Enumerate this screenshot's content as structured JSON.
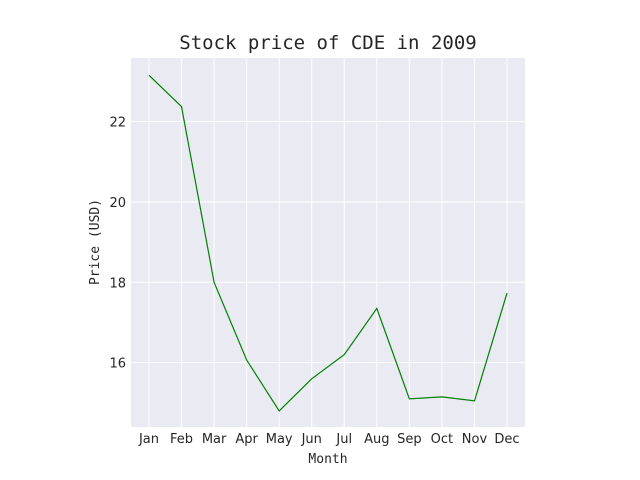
{
  "chart_data": {
    "type": "line",
    "title": "Stock price of CDE in 2009",
    "xlabel": "Month",
    "ylabel": "Price (USD)",
    "categories": [
      "Jan",
      "Feb",
      "Mar",
      "Apr",
      "May",
      "Jun",
      "Jul",
      "Aug",
      "Sep",
      "Oct",
      "Nov",
      "Dec"
    ],
    "values": [
      23.15,
      22.37,
      18.0,
      16.07,
      14.8,
      15.6,
      16.2,
      17.35,
      15.1,
      15.15,
      15.05,
      17.73
    ],
    "yticks": [
      16,
      18,
      20,
      22
    ],
    "ylim": [
      14.4,
      23.58
    ],
    "grid": true,
    "colors": {
      "line": "#008000",
      "plot_background": "#eaeaf2",
      "grid": "#ffffff"
    }
  }
}
